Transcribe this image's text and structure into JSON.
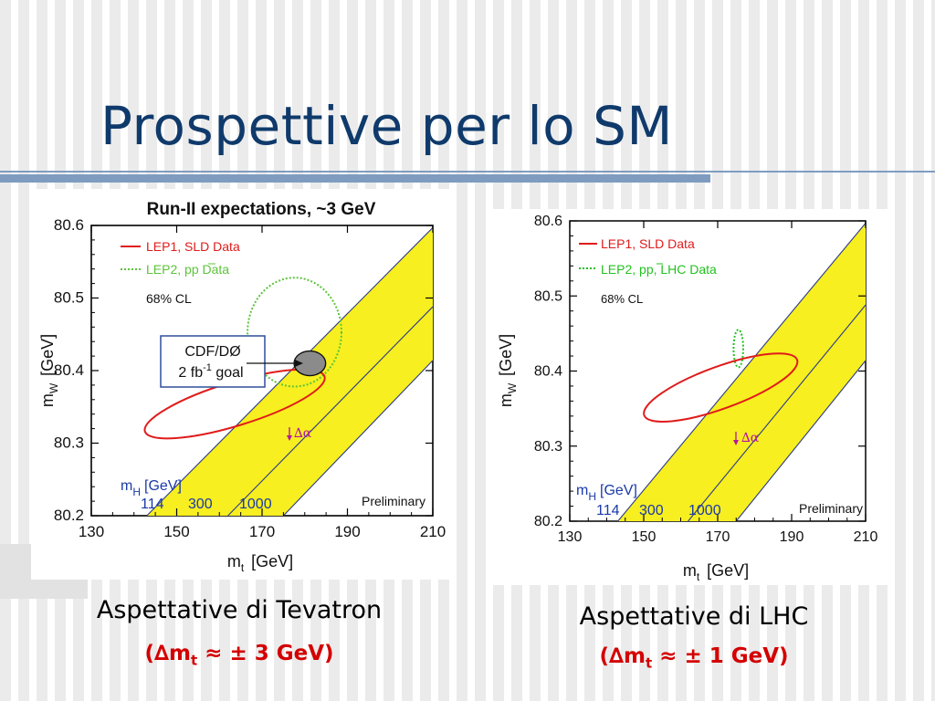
{
  "slide": {
    "title": "Prospettive per lo SM",
    "left_caption": "Aspettative di Tevatron",
    "left_delta": {
      "open": "(",
      "delta": "∆",
      "m": "m",
      "sub": "t",
      "approx": " ≈ ",
      "pm": "±",
      "value": " 3 GeV)"
    },
    "right_caption": "Aspettative di LHC",
    "right_delta": {
      "open": "(",
      "delta": "∆",
      "m": "m",
      "sub": "t",
      "approx": " ≈ ",
      "pm": "±",
      "value": " 1 GeV)"
    }
  },
  "colors": {
    "title": "#0f3a6b",
    "accent_rule": "#7f9cc0",
    "band_fill": "#f7ef1f",
    "lep1": "#e01b1b",
    "lep2": "#5cc43a",
    "mh_label": "#1a3aa8",
    "delta_alpha": "#b5179e",
    "caption_delta": "#d40000"
  },
  "chart_data": [
    {
      "type": "contour",
      "title": "Run-II expectations, ~3 GeV",
      "xlabel": {
        "main": "m",
        "sub": "t",
        "units": "[GeV]"
      },
      "ylabel": {
        "main": "m",
        "sub": "W",
        "units": "[GeV]"
      },
      "xlim": [
        130,
        210
      ],
      "ylim": [
        80.2,
        80.6
      ],
      "xticks": [
        "130",
        "150",
        "170",
        "190",
        "210"
      ],
      "yticks": [
        "80.2",
        "80.3",
        "80.4",
        "80.5",
        "80.6"
      ],
      "legend": [
        {
          "label": "LEP1, SLD Data",
          "style": "solid",
          "color": "#e01b1b"
        },
        {
          "label": "LEP2, pp Data",
          "style": "dotted",
          "color": "#5cc43a"
        }
      ],
      "cl_label": "68% CL",
      "higgs_band": {
        "label_main": "m",
        "label_sub": "H",
        "label_units": "[GeV]",
        "values": [
          "114",
          "300",
          "1000"
        ],
        "lines": [
          [
            [
              143,
              80.2
            ],
            [
              210,
              80.597
            ]
          ],
          [
            [
              162,
              80.2
            ],
            [
              210,
              80.488
            ]
          ],
          [
            [
              175,
              80.2
            ],
            [
              210,
              80.414
            ]
          ]
        ]
      },
      "lep1_ellipse": {
        "center": [
          163.6,
          80.354
        ],
        "rx": 22,
        "ry": 0.03,
        "tilt_deg": -17
      },
      "lep2_ellipse": {
        "center": [
          177.6,
          80.453
        ],
        "rx": 11,
        "ry": 0.075
      },
      "goal_ellipse": {
        "center": [
          181.2,
          80.41
        ],
        "rx": 3.7,
        "ry": 0.017,
        "label_line1": "CDF/DØ",
        "label_line2_main": "2 fb",
        "label_line2_sup": "-1",
        "label_line2_end": " goal"
      },
      "delta_alpha_label": "∆α",
      "preliminary": "Preliminary"
    },
    {
      "type": "contour",
      "xlabel": {
        "main": "m",
        "sub": "t",
        "units": "[GeV]"
      },
      "ylabel": {
        "main": "m",
        "sub": "W",
        "units": "[GeV]"
      },
      "xlim": [
        130,
        210
      ],
      "ylim": [
        80.2,
        80.6
      ],
      "xticks": [
        "130",
        "150",
        "170",
        "190",
        "210"
      ],
      "yticks": [
        "80.2",
        "80.3",
        "80.4",
        "80.5",
        "80.6"
      ],
      "legend": [
        {
          "label": "LEP1, SLD Data",
          "style": "solid",
          "color": "#e01b1b"
        },
        {
          "label": "LEP2, pp, LHC Data",
          "style": "dotted",
          "color": "#22c11f"
        }
      ],
      "cl_label": "68% CL",
      "higgs_band": {
        "label_main": "m",
        "label_sub": "H",
        "label_units": "[GeV]",
        "values": [
          "114",
          "300",
          "1000"
        ],
        "lines": [
          [
            [
              143,
              80.2
            ],
            [
              210,
              80.597
            ]
          ],
          [
            [
              162,
              80.2
            ],
            [
              210,
              80.488
            ]
          ],
          [
            [
              175,
              80.2
            ],
            [
              210,
              80.414
            ]
          ]
        ]
      },
      "lep1_ellipse": {
        "center": [
          170.8,
          80.378
        ],
        "rx": 22,
        "ry": 0.028,
        "tilt_deg": -20
      },
      "lep2_ellipse": {
        "center": [
          175.6,
          80.43
        ],
        "rx": 1.3,
        "ry": 0.025
      },
      "delta_alpha_label": "∆α",
      "preliminary": "Preliminary"
    }
  ]
}
